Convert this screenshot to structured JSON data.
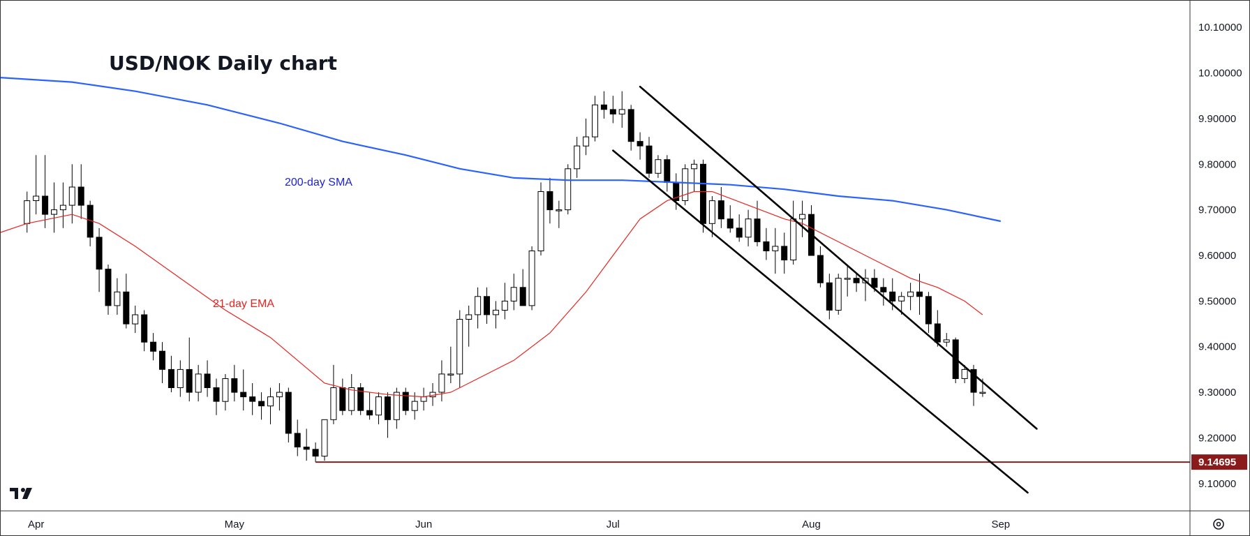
{
  "chart_data": {
    "type": "candlestick",
    "title": "USD/NOK Daily chart",
    "ylim": [
      9.04,
      10.16
    ],
    "y_ticks": [
      "10.10000",
      "10.00000",
      "9.90000",
      "9.80000",
      "9.70000",
      "9.60000",
      "9.50000",
      "9.40000",
      "9.30000",
      "9.20000",
      "9.10000"
    ],
    "y_tick_values": [
      10.1,
      10.0,
      9.9,
      9.8,
      9.7,
      9.6,
      9.5,
      9.4,
      9.3,
      9.2,
      9.1
    ],
    "x_ticks": [
      "Apr",
      "May",
      "Jun",
      "Jul",
      "Aug",
      "Sep"
    ],
    "x_tick_positions": [
      1,
      23,
      44,
      65,
      87,
      108
    ],
    "x_range": [
      -3,
      129
    ],
    "ohlc": [
      [
        9.67,
        9.74,
        9.65,
        9.72
      ],
      [
        9.72,
        9.82,
        9.69,
        9.73
      ],
      [
        9.73,
        9.82,
        9.66,
        9.69
      ],
      [
        9.69,
        9.76,
        9.65,
        9.7
      ],
      [
        9.7,
        9.76,
        9.66,
        9.71
      ],
      [
        9.71,
        9.8,
        9.67,
        9.75
      ],
      [
        9.75,
        9.8,
        9.68,
        9.71
      ],
      [
        9.71,
        9.72,
        9.62,
        9.64
      ],
      [
        9.64,
        9.66,
        9.52,
        9.57
      ],
      [
        9.57,
        9.58,
        9.47,
        9.49
      ],
      [
        9.49,
        9.55,
        9.47,
        9.52
      ],
      [
        9.52,
        9.56,
        9.44,
        9.45
      ],
      [
        9.45,
        9.49,
        9.43,
        9.47
      ],
      [
        9.47,
        9.48,
        9.39,
        9.41
      ],
      [
        9.41,
        9.43,
        9.37,
        9.39
      ],
      [
        9.39,
        9.41,
        9.32,
        9.35
      ],
      [
        9.35,
        9.38,
        9.3,
        9.31
      ],
      [
        9.31,
        9.37,
        9.29,
        9.35
      ],
      [
        9.35,
        9.42,
        9.28,
        9.3
      ],
      [
        9.3,
        9.36,
        9.28,
        9.34
      ],
      [
        9.34,
        9.37,
        9.29,
        9.31
      ],
      [
        9.31,
        9.33,
        9.25,
        9.28
      ],
      [
        9.28,
        9.34,
        9.26,
        9.33
      ],
      [
        9.33,
        9.36,
        9.28,
        9.3
      ],
      [
        9.3,
        9.35,
        9.26,
        9.29
      ],
      [
        9.29,
        9.32,
        9.25,
        9.28
      ],
      [
        9.28,
        9.3,
        9.24,
        9.27
      ],
      [
        9.27,
        9.31,
        9.23,
        9.29
      ],
      [
        9.29,
        9.32,
        9.26,
        9.3
      ],
      [
        9.3,
        9.31,
        9.19,
        9.21
      ],
      [
        9.21,
        9.24,
        9.16,
        9.18
      ],
      [
        9.18,
        9.22,
        9.15,
        9.175
      ],
      [
        9.175,
        9.19,
        9.14695,
        9.16
      ],
      [
        9.16,
        9.24,
        9.15,
        9.24
      ],
      [
        9.24,
        9.36,
        9.23,
        9.31
      ],
      [
        9.31,
        9.33,
        9.25,
        9.26
      ],
      [
        9.26,
        9.34,
        9.25,
        9.31
      ],
      [
        9.31,
        9.32,
        9.25,
        9.26
      ],
      [
        9.26,
        9.3,
        9.24,
        9.25
      ],
      [
        9.25,
        9.3,
        9.23,
        9.29
      ],
      [
        9.29,
        9.3,
        9.2,
        9.24
      ],
      [
        9.24,
        9.31,
        9.22,
        9.3
      ],
      [
        9.3,
        9.31,
        9.25,
        9.26
      ],
      [
        9.26,
        9.3,
        9.24,
        9.28
      ],
      [
        9.28,
        9.31,
        9.26,
        9.29
      ],
      [
        9.29,
        9.32,
        9.27,
        9.3
      ],
      [
        9.3,
        9.37,
        9.28,
        9.34
      ],
      [
        9.34,
        9.4,
        9.32,
        9.34
      ],
      [
        9.34,
        9.48,
        9.31,
        9.46
      ],
      [
        9.46,
        9.49,
        9.4,
        9.47
      ],
      [
        9.47,
        9.53,
        9.44,
        9.51
      ],
      [
        9.51,
        9.53,
        9.45,
        9.47
      ],
      [
        9.47,
        9.5,
        9.44,
        9.48
      ],
      [
        9.48,
        9.54,
        9.46,
        9.5
      ],
      [
        9.5,
        9.56,
        9.48,
        9.53
      ],
      [
        9.53,
        9.57,
        9.49,
        9.49
      ],
      [
        9.49,
        9.62,
        9.48,
        9.61
      ],
      [
        9.61,
        9.76,
        9.6,
        9.74
      ],
      [
        9.74,
        9.77,
        9.67,
        9.7
      ],
      [
        9.7,
        9.72,
        9.66,
        9.7
      ],
      [
        9.7,
        9.8,
        9.69,
        9.79
      ],
      [
        9.79,
        9.86,
        9.77,
        9.84
      ],
      [
        9.84,
        9.9,
        9.82,
        9.86
      ],
      [
        9.86,
        9.95,
        9.85,
        9.93
      ],
      [
        9.93,
        9.96,
        9.9,
        9.92
      ],
      [
        9.92,
        9.95,
        9.89,
        9.91
      ],
      [
        9.91,
        9.96,
        9.88,
        9.92
      ],
      [
        9.92,
        9.93,
        9.83,
        9.85
      ],
      [
        9.85,
        9.87,
        9.81,
        9.84
      ],
      [
        9.84,
        9.86,
        9.77,
        9.78
      ],
      [
        9.78,
        9.82,
        9.77,
        9.81
      ],
      [
        9.81,
        9.82,
        9.74,
        9.76
      ],
      [
        9.76,
        9.78,
        9.7,
        9.72
      ],
      [
        9.72,
        9.8,
        9.71,
        9.79
      ],
      [
        9.79,
        9.81,
        9.74,
        9.8
      ],
      [
        9.8,
        9.81,
        9.65,
        9.67
      ],
      [
        9.67,
        9.73,
        9.64,
        9.72
      ],
      [
        9.72,
        9.75,
        9.66,
        9.68
      ],
      [
        9.68,
        9.71,
        9.65,
        9.66
      ],
      [
        9.66,
        9.69,
        9.63,
        9.64
      ],
      [
        9.64,
        9.7,
        9.62,
        9.68
      ],
      [
        9.68,
        9.72,
        9.62,
        9.63
      ],
      [
        9.63,
        9.66,
        9.59,
        9.61
      ],
      [
        9.61,
        9.66,
        9.56,
        9.62
      ],
      [
        9.62,
        9.65,
        9.56,
        9.59
      ],
      [
        9.59,
        9.72,
        9.58,
        9.68
      ],
      [
        9.68,
        9.72,
        9.64,
        9.69
      ],
      [
        9.69,
        9.71,
        9.6,
        9.6
      ],
      [
        9.6,
        9.62,
        9.53,
        9.54
      ],
      [
        9.54,
        9.56,
        9.46,
        9.48
      ],
      [
        9.48,
        9.56,
        9.47,
        9.55
      ],
      [
        9.55,
        9.58,
        9.51,
        9.55
      ],
      [
        9.55,
        9.56,
        9.52,
        9.54
      ],
      [
        9.54,
        9.57,
        9.5,
        9.55
      ],
      [
        9.55,
        9.57,
        9.52,
        9.53
      ],
      [
        9.53,
        9.55,
        9.49,
        9.52
      ],
      [
        9.52,
        9.55,
        9.48,
        9.5
      ],
      [
        9.5,
        9.52,
        9.47,
        9.51
      ],
      [
        9.51,
        9.54,
        9.48,
        9.52
      ],
      [
        9.52,
        9.56,
        9.47,
        9.51
      ],
      [
        9.51,
        9.52,
        9.43,
        9.45
      ],
      [
        9.45,
        9.48,
        9.4,
        9.41
      ],
      [
        9.41,
        9.43,
        9.4,
        9.415
      ],
      [
        9.415,
        9.42,
        9.32,
        9.33
      ],
      [
        9.33,
        9.36,
        9.32,
        9.35
      ],
      [
        9.35,
        9.36,
        9.27,
        9.3
      ],
      [
        9.3,
        9.33,
        9.29,
        9.3
      ]
    ],
    "sma_200": [
      [
        -3,
        9.99
      ],
      [
        5,
        9.98
      ],
      [
        12,
        9.96
      ],
      [
        20,
        9.93
      ],
      [
        28,
        9.89
      ],
      [
        35,
        9.85
      ],
      [
        42,
        9.82
      ],
      [
        48,
        9.79
      ],
      [
        54,
        9.77
      ],
      [
        60,
        9.765
      ],
      [
        66,
        9.765
      ],
      [
        72,
        9.76
      ],
      [
        78,
        9.755
      ],
      [
        84,
        9.745
      ],
      [
        90,
        9.73
      ],
      [
        96,
        9.72
      ],
      [
        102,
        9.7
      ],
      [
        108,
        9.675
      ]
    ],
    "ema_21": [
      [
        -3,
        9.65
      ],
      [
        0,
        9.67
      ],
      [
        5,
        9.69
      ],
      [
        8,
        9.67
      ],
      [
        12,
        9.62
      ],
      [
        17,
        9.55
      ],
      [
        22,
        9.48
      ],
      [
        27,
        9.42
      ],
      [
        30,
        9.37
      ],
      [
        33,
        9.32
      ],
      [
        36,
        9.305
      ],
      [
        40,
        9.295
      ],
      [
        44,
        9.29
      ],
      [
        47,
        9.3
      ],
      [
        50,
        9.33
      ],
      [
        54,
        9.37
      ],
      [
        58,
        9.43
      ],
      [
        62,
        9.52
      ],
      [
        65,
        9.6
      ],
      [
        68,
        9.68
      ],
      [
        71,
        9.72
      ],
      [
        74,
        9.74
      ],
      [
        76,
        9.74
      ],
      [
        80,
        9.71
      ],
      [
        84,
        9.68
      ],
      [
        86,
        9.67
      ],
      [
        89,
        9.64
      ],
      [
        92,
        9.61
      ],
      [
        95,
        9.58
      ],
      [
        98,
        9.55
      ],
      [
        101,
        9.53
      ],
      [
        104,
        9.5
      ],
      [
        106,
        9.47
      ]
    ],
    "channel_upper": [
      [
        68,
        9.97
      ],
      [
        112,
        9.22
      ]
    ],
    "channel_lower": [
      [
        65,
        9.83
      ],
      [
        111,
        9.08
      ]
    ],
    "support_level": 9.14695,
    "support_label": "9.14695",
    "support_start_x": 32,
    "annotations": {
      "sma_label": "200-day SMA",
      "ema_label": "21-day EMA"
    },
    "colors": {
      "up": "#ffffff",
      "down": "#000000",
      "outline": "#000000",
      "sma": "#2962ff",
      "sma_text": "#1a1fd6",
      "ema": "#e8231f",
      "ema_text": "#e8231f",
      "support": "#8b1a1a",
      "axis_text": "#131722",
      "border": "#333333"
    },
    "grid": false
  },
  "logo": {
    "text": "TV"
  }
}
